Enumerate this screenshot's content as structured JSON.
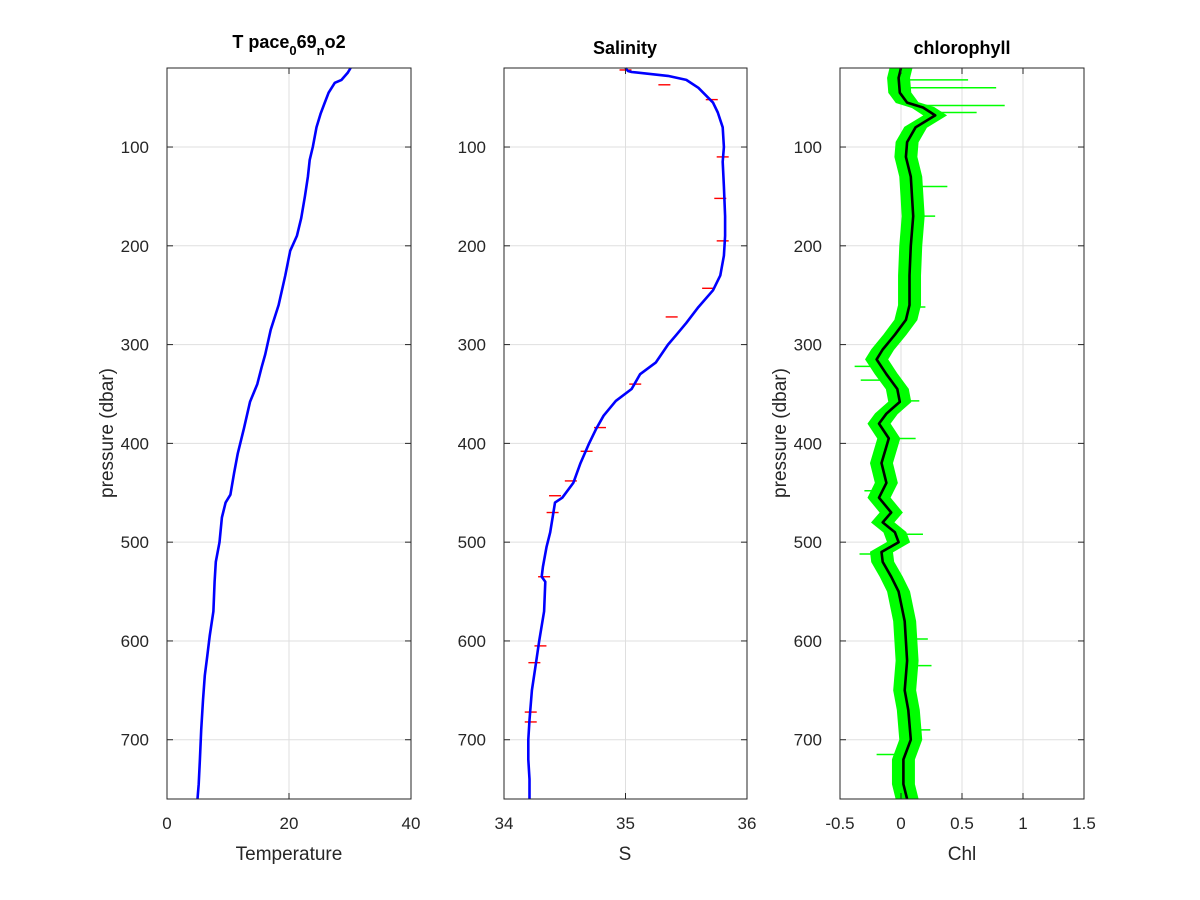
{
  "figure": {
    "background": "#ffffff",
    "colors": {
      "axis": "#262626",
      "grid": "#dfdfdf",
      "profile": "#0000ff",
      "spikes": "#ff0000",
      "band": "#00ff00",
      "mean": "#000000"
    }
  },
  "chart_data": [
    {
      "type": "line",
      "title": "T pace069no2",
      "title_parts": {
        "base": "T pace",
        "sub1": "0",
        "mid": "69",
        "sub2": "n",
        "tail": "o2"
      },
      "xlabel": "Temperature",
      "ylabel": "pressure (dbar)",
      "xlim": [
        0,
        40
      ],
      "ylim": [
        20,
        760
      ],
      "y_reversed": true,
      "xticks": [
        "0",
        "20",
        "40"
      ],
      "xtick_values": [
        0,
        20,
        40
      ],
      "yticks": [
        "100",
        "200",
        "300",
        "400",
        "500",
        "600",
        "700"
      ],
      "ytick_values": [
        100,
        200,
        300,
        400,
        500,
        600,
        700
      ],
      "grid": true,
      "series": [
        {
          "color": "#0000ff",
          "points": [
            [
              30.1,
              20
            ],
            [
              29.6,
              25
            ],
            [
              28.6,
              32
            ],
            [
              27.5,
              35
            ],
            [
              26.5,
              45
            ],
            [
              25.8,
              56
            ],
            [
              25.2,
              66
            ],
            [
              24.5,
              80
            ],
            [
              23.9,
              100
            ],
            [
              23.4,
              113
            ],
            [
              23.1,
              130
            ],
            [
              22.6,
              150
            ],
            [
              22.0,
              172
            ],
            [
              21.3,
              190
            ],
            [
              20.2,
              205
            ],
            [
              19.4,
              230
            ],
            [
              18.3,
              260
            ],
            [
              17.0,
              285
            ],
            [
              16.1,
              310
            ],
            [
              15.5,
              323
            ],
            [
              14.8,
              340
            ],
            [
              13.6,
              358
            ],
            [
              12.6,
              385
            ],
            [
              11.6,
              410
            ],
            [
              11.0,
              430
            ],
            [
              10.4,
              452
            ],
            [
              9.6,
              460
            ],
            [
              9.0,
              475
            ],
            [
              8.6,
              500
            ],
            [
              8.0,
              520
            ],
            [
              7.8,
              540
            ],
            [
              7.6,
              570
            ],
            [
              7.0,
              595
            ],
            [
              6.6,
              615
            ],
            [
              6.2,
              635
            ],
            [
              5.9,
              660
            ],
            [
              5.6,
              690
            ],
            [
              5.4,
              720
            ],
            [
              5.2,
              745
            ],
            [
              5.0,
              760
            ]
          ]
        }
      ]
    },
    {
      "type": "line",
      "title": "Salinity",
      "xlabel": "S",
      "xlim": [
        34,
        36
      ],
      "ylim": [
        20,
        760
      ],
      "y_reversed": true,
      "xticks": [
        "34",
        "35",
        "36"
      ],
      "xtick_values": [
        34,
        35,
        36
      ],
      "yticks": [
        "100",
        "200",
        "300",
        "400",
        "500",
        "600",
        "700"
      ],
      "ytick_values": [
        100,
        200,
        300,
        400,
        500,
        600,
        700
      ],
      "grid": true,
      "series": [
        {
          "color": "#0000ff",
          "points": [
            [
              35.0,
              20
            ],
            [
              35.02,
              23
            ],
            [
              35.05,
              24
            ],
            [
              35.35,
              28
            ],
            [
              35.5,
              32
            ],
            [
              35.6,
              40
            ],
            [
              35.72,
              55
            ],
            [
              35.76,
              65
            ],
            [
              35.8,
              80
            ],
            [
              35.81,
              100
            ],
            [
              35.8,
              115
            ],
            [
              35.81,
              140
            ],
            [
              35.82,
              170
            ],
            [
              35.82,
              190
            ],
            [
              35.81,
              210
            ],
            [
              35.78,
              230
            ],
            [
              35.72,
              245
            ],
            [
              35.6,
              262
            ],
            [
              35.5,
              278
            ],
            [
              35.42,
              290
            ],
            [
              35.35,
              300
            ],
            [
              35.25,
              318
            ],
            [
              35.12,
              330
            ],
            [
              35.05,
              345
            ],
            [
              34.92,
              357
            ],
            [
              34.82,
              372
            ],
            [
              34.76,
              385
            ],
            [
              34.7,
              400
            ],
            [
              34.63,
              420
            ],
            [
              34.57,
              440
            ],
            [
              34.48,
              455
            ],
            [
              34.42,
              460
            ],
            [
              34.4,
              475
            ],
            [
              34.38,
              490
            ],
            [
              34.35,
              505
            ],
            [
              34.32,
              525
            ],
            [
              34.31,
              535
            ],
            [
              34.34,
              540
            ],
            [
              34.33,
              570
            ],
            [
              34.29,
              600
            ],
            [
              34.26,
              625
            ],
            [
              34.23,
              650
            ],
            [
              34.21,
              680
            ],
            [
              34.2,
              700
            ],
            [
              34.2,
              720
            ],
            [
              34.21,
              740
            ],
            [
              34.21,
              760
            ]
          ]
        }
      ],
      "spikes": [
        [
          35.0,
          22
        ],
        [
          35.32,
          37
        ],
        [
          35.71,
          52
        ],
        [
          35.8,
          110
        ],
        [
          35.78,
          152
        ],
        [
          35.8,
          195
        ],
        [
          35.68,
          243
        ],
        [
          35.38,
          272
        ],
        [
          35.08,
          340
        ],
        [
          34.79,
          384
        ],
        [
          34.68,
          408
        ],
        [
          34.55,
          438
        ],
        [
          34.42,
          453
        ],
        [
          34.4,
          470
        ],
        [
          34.33,
          535
        ],
        [
          34.3,
          605
        ],
        [
          34.25,
          622
        ],
        [
          34.22,
          672
        ],
        [
          34.22,
          682
        ]
      ]
    },
    {
      "type": "area",
      "title": "chlorophyll",
      "xlabel": "Chl",
      "ylabel": "pressure (dbar)",
      "xlim": [
        -0.5,
        1.5
      ],
      "ylim": [
        20,
        760
      ],
      "y_reversed": true,
      "xticks": [
        "-0.5",
        "0",
        "0.5",
        "1",
        "1.5"
      ],
      "xtick_values": [
        -0.5,
        0,
        0.5,
        1,
        1.5
      ],
      "yticks": [
        "100",
        "200",
        "300",
        "400",
        "500",
        "600",
        "700"
      ],
      "ytick_values": [
        100,
        200,
        300,
        400,
        500,
        600,
        700
      ],
      "grid": true,
      "series": [
        {
          "color": "#000000",
          "points": [
            [
              0.0,
              20
            ],
            [
              -0.02,
              30
            ],
            [
              -0.01,
              45
            ],
            [
              0.05,
              55
            ],
            [
              0.18,
              60
            ],
            [
              0.28,
              68
            ],
            [
              0.12,
              80
            ],
            [
              0.05,
              95
            ],
            [
              0.04,
              110
            ],
            [
              0.08,
              130
            ],
            [
              0.1,
              170
            ],
            [
              0.08,
              200
            ],
            [
              0.07,
              230
            ],
            [
              0.07,
              260
            ],
            [
              0.04,
              275
            ],
            [
              -0.05,
              290
            ],
            [
              -0.15,
              305
            ],
            [
              -0.2,
              315
            ],
            [
              -0.12,
              330
            ],
            [
              -0.03,
              345
            ],
            [
              -0.01,
              358
            ],
            [
              -0.12,
              370
            ],
            [
              -0.18,
              380
            ],
            [
              -0.1,
              395
            ],
            [
              -0.16,
              420
            ],
            [
              -0.12,
              440
            ],
            [
              -0.18,
              455
            ],
            [
              -0.08,
              470
            ],
            [
              -0.15,
              480
            ],
            [
              -0.05,
              490
            ],
            [
              -0.02,
              500
            ],
            [
              -0.16,
              510
            ],
            [
              -0.15,
              520
            ],
            [
              -0.08,
              535
            ],
            [
              -0.02,
              550
            ],
            [
              0.03,
              580
            ],
            [
              0.05,
              620
            ],
            [
              0.03,
              650
            ],
            [
              0.06,
              670
            ],
            [
              0.08,
              700
            ],
            [
              0.02,
              720
            ],
            [
              0.02,
              745
            ],
            [
              0.05,
              760
            ]
          ]
        }
      ],
      "band_halfwidth": 0.09,
      "band_spikes": [
        [
          0.55,
          32
        ],
        [
          0.78,
          40
        ],
        [
          0.85,
          58
        ],
        [
          0.62,
          65
        ],
        [
          0.38,
          140
        ],
        [
          0.28,
          170
        ],
        [
          0.2,
          262
        ],
        [
          -0.38,
          322
        ],
        [
          -0.33,
          336
        ],
        [
          0.15,
          357
        ],
        [
          0.12,
          395
        ],
        [
          -0.3,
          448
        ],
        [
          0.18,
          492
        ],
        [
          -0.34,
          512
        ],
        [
          0.22,
          598
        ],
        [
          0.25,
          625
        ],
        [
          0.24,
          690
        ],
        [
          -0.2,
          715
        ]
      ]
    }
  ]
}
